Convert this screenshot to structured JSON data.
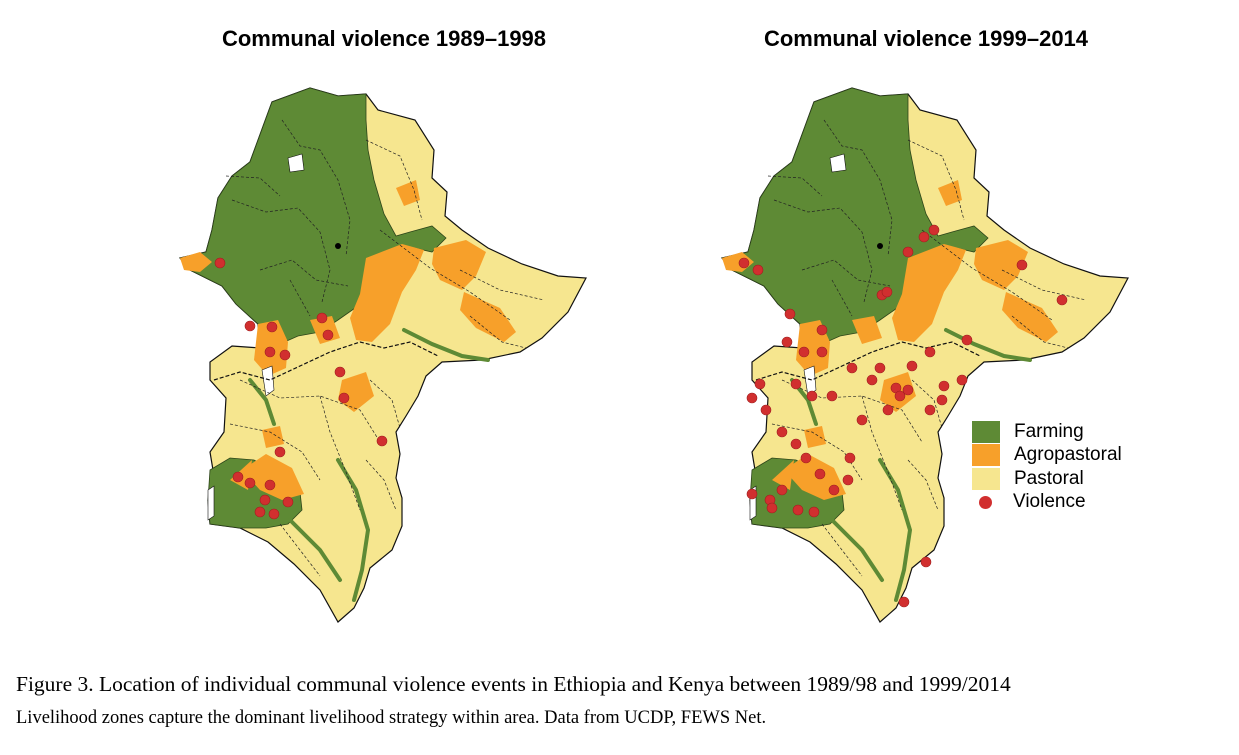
{
  "maps": [
    {
      "title": "Communal violence 1989–1998"
    },
    {
      "title": "Communal violence 1999–2014"
    }
  ],
  "legend": {
    "items": [
      {
        "label": "Farming",
        "color": "#5e8a35"
      },
      {
        "label": "Agropastoral",
        "color": "#f7a02a"
      },
      {
        "label": "Pastoral",
        "color": "#f6e68f"
      },
      {
        "label": "Violence",
        "color": "#d12f2f"
      }
    ]
  },
  "caption": {
    "main": "Figure 3. Location of individual communal violence events in Ethiopia and Kenya between 1989/98 and 1999/2014",
    "sub": "Livelihood zones capture the dominant livelihood strategy within area. Data from UCDP, FEWS Net."
  },
  "colors": {
    "farming": "#5e8a35",
    "agropastoral": "#f7a02a",
    "pastoral": "#f6e68f",
    "violence": "#d12f2f",
    "border": "#111111"
  }
}
